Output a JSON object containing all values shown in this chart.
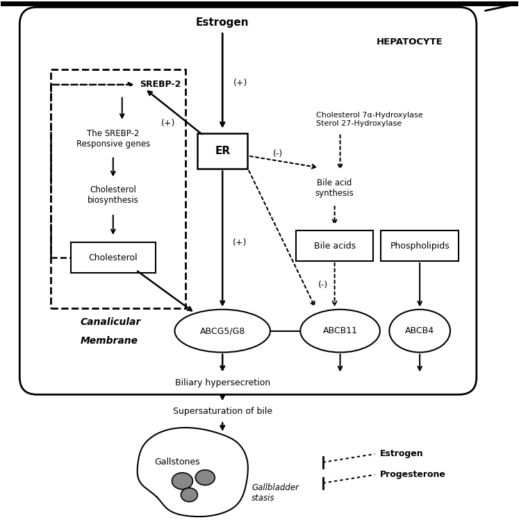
{
  "bg_color": "#ffffff",
  "border_color": "#000000",
  "text_color": "#000000",
  "hepatocyte_label": "HEPATOCYTE",
  "estrogen_label": "Estrogen",
  "srebp2_label": "SREBP-2",
  "srebp2_genes_label": "The SREBP-2\nResponsive genes",
  "cholesterol_biosyn_label": "Cholesterol\nbiosynthesis",
  "cholesterol_label": "Cholesterol",
  "er_label": "ER",
  "chol7_label": "Cholesterol 7α-Hydroxylase\nSterol 27-Hydroxylase",
  "bile_acid_syn_label": "Bile acid\nsynthesis",
  "bile_acids_label": "Bile acids",
  "phospholipids_label": "Phospholipids",
  "abcg5g8_label": "ABCG5/G8",
  "abcb11_label": "ABCB11",
  "abcb4_label": "ABCB4",
  "biliary_label": "Biliary hypersecretion",
  "supersaturation_label": "Supersaturation of bile",
  "gallstones_label": "Gallstones",
  "gallbladder_label": "Gallbladder\nstasis",
  "canalicular_label": "Canalicular",
  "membrane_label": "Membrane",
  "estrogen_legend": "Estrogen",
  "progesterone_legend": "Progesterone"
}
